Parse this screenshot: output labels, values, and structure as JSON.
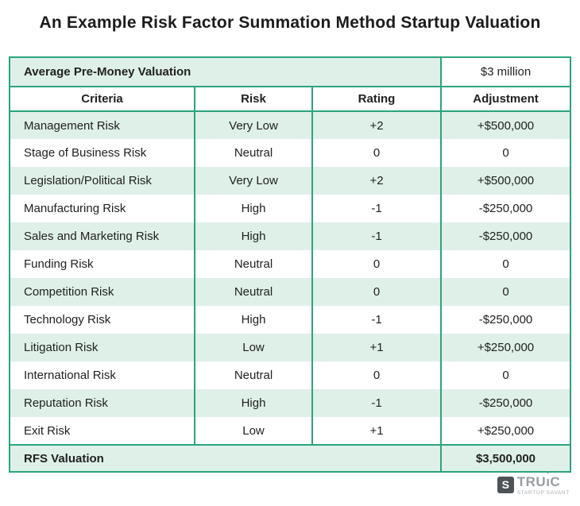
{
  "chart_data": {
    "type": "table",
    "title": "An Example Risk Factor Summation Method Startup Valuation",
    "pre_header": {
      "label": "Average Pre-Money Valuation",
      "value": "$3 million"
    },
    "columns": [
      "Criteria",
      "Risk",
      "Rating",
      "Adjustment"
    ],
    "rows": [
      {
        "criteria": "Management Risk",
        "risk": "Very Low",
        "rating": "+2",
        "adjustment": "+$500,000"
      },
      {
        "criteria": "Stage of Business Risk",
        "risk": "Neutral",
        "rating": "0",
        "adjustment": "0"
      },
      {
        "criteria": "Legislation/Political Risk",
        "risk": "Very Low",
        "rating": "+2",
        "adjustment": "+$500,000"
      },
      {
        "criteria": "Manufacturing Risk",
        "risk": "High",
        "rating": "-1",
        "adjustment": "-$250,000"
      },
      {
        "criteria": "Sales and Marketing Risk",
        "risk": "High",
        "rating": "-1",
        "adjustment": "-$250,000"
      },
      {
        "criteria": "Funding Risk",
        "risk": "Neutral",
        "rating": "0",
        "adjustment": "0"
      },
      {
        "criteria": "Competition Risk",
        "risk": "Neutral",
        "rating": "0",
        "adjustment": "0"
      },
      {
        "criteria": "Technology Risk",
        "risk": "High",
        "rating": "-1",
        "adjustment": "-$250,000"
      },
      {
        "criteria": "Litigation Risk",
        "risk": "Low",
        "rating": "+1",
        "adjustment": "+$250,000"
      },
      {
        "criteria": "International Risk",
        "risk": "Neutral",
        "rating": "0",
        "adjustment": "0"
      },
      {
        "criteria": "Reputation Risk",
        "risk": "High",
        "rating": "-1",
        "adjustment": "-$250,000"
      },
      {
        "criteria": "Exit Risk",
        "risk": "Low",
        "rating": "+1",
        "adjustment": "+$250,000"
      }
    ],
    "footer": {
      "label": "RFS Valuation",
      "value": "$3,500,000"
    }
  },
  "logo": {
    "monogram": "S",
    "brand_pre": "TRU",
    "brand_i": "ı",
    "brand_post": "C",
    "arrow_icon": "▲",
    "tagline": "STARTUP SAVANT"
  },
  "colors": {
    "accent_green": "#2aa47f",
    "row_green": "#dff0e8",
    "text_dark": "#212121",
    "logo_gray": "#979da2",
    "logo_square": "#4c5257"
  }
}
